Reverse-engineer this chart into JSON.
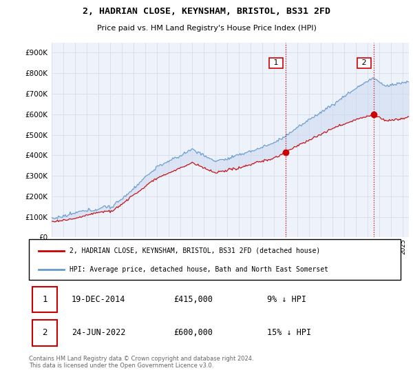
{
  "title": "2, HADRIAN CLOSE, KEYNSHAM, BRISTOL, BS31 2FD",
  "subtitle": "Price paid vs. HM Land Registry's House Price Index (HPI)",
  "xlim_start": 1995.0,
  "xlim_end": 2025.5,
  "ylim_min": 0,
  "ylim_max": 950000,
  "yticks": [
    0,
    100000,
    200000,
    300000,
    400000,
    500000,
    600000,
    700000,
    800000,
    900000
  ],
  "ytick_labels": [
    "£0",
    "£100K",
    "£200K",
    "£300K",
    "£400K",
    "£500K",
    "£600K",
    "£700K",
    "£800K",
    "£900K"
  ],
  "hpi_color": "#6699cc",
  "price_color": "#cc0000",
  "transaction1_date": 2014.97,
  "transaction1_price": 415000,
  "transaction2_date": 2022.49,
  "transaction2_price": 600000,
  "vline_color": "#cc0000",
  "legend1_text": "2, HADRIAN CLOSE, KEYNSHAM, BRISTOL, BS31 2FD (detached house)",
  "legend2_text": "HPI: Average price, detached house, Bath and North East Somerset",
  "note1_num": "1",
  "note1_date": "19-DEC-2014",
  "note1_price": "£415,000",
  "note1_hpi": "9% ↓ HPI",
  "note2_num": "2",
  "note2_date": "24-JUN-2022",
  "note2_price": "£600,000",
  "note2_hpi": "15% ↓ HPI",
  "footer": "Contains HM Land Registry data © Crown copyright and database right 2024.\nThis data is licensed under the Open Government Licence v3.0.",
  "bg_color": "#ffffff",
  "plot_bg_color": "#eef2fa",
  "grid_color": "#d8dce8",
  "shade_color": "#c8d8f0",
  "shade_alpha": 0.5
}
